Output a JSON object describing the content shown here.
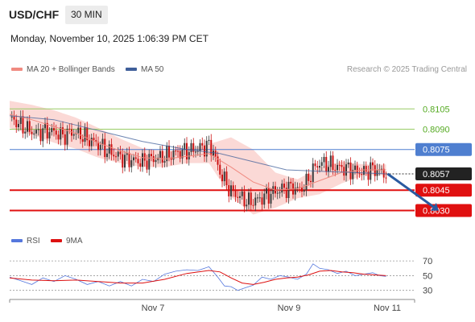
{
  "header": {
    "symbol": "USD/CHF",
    "timeframe": "30 MIN",
    "timestamp": "Monday, November 10, 2025 1:06:39 PM CET"
  },
  "legend": {
    "ma20": "MA 20 + Bollinger Bands",
    "ma50": "MA 50",
    "rsi": "RSI",
    "ma9": "9MA",
    "credit": "Research © 2025 Trading Central"
  },
  "colors": {
    "ma20": "#f08a80",
    "band": "#fbd9d6",
    "ma50": "#3f5f9a",
    "up": "#3a3a3a",
    "down": "#cc1111",
    "support": "#e01010",
    "resistance_green": "#99cc66",
    "pivot_blue": "#4f7fd0",
    "arrow": "#2a5aa0",
    "rsi": "#5577dd",
    "rsi_ma": "#dd1111"
  },
  "chart_data": [
    {
      "type": "line",
      "name": "price",
      "y_scale_range": [
        0.8016,
        0.8123
      ],
      "x_ticks": [
        "Nov 7",
        "Nov 9",
        "Nov 11"
      ],
      "price_path": [
        [
          0,
          0.8099
        ],
        [
          4,
          0.8094
        ],
        [
          8,
          0.809
        ],
        [
          12,
          0.8087
        ],
        [
          16,
          0.8089
        ],
        [
          20,
          0.8088
        ],
        [
          24,
          0.8085
        ],
        [
          28,
          0.8088
        ],
        [
          32,
          0.8086
        ],
        [
          36,
          0.8082
        ],
        [
          40,
          0.8079
        ],
        [
          44,
          0.8074
        ],
        [
          48,
          0.8071
        ],
        [
          52,
          0.8068
        ],
        [
          56,
          0.8067
        ],
        [
          60,
          0.8066
        ],
        [
          64,
          0.8068
        ],
        [
          68,
          0.8069
        ],
        [
          72,
          0.8071
        ],
        [
          76,
          0.8073
        ],
        [
          80,
          0.8074
        ],
        [
          84,
          0.8075
        ],
        [
          88,
          0.8077
        ],
        [
          90,
          0.8078
        ],
        [
          92,
          0.8074
        ],
        [
          94,
          0.8062
        ],
        [
          97,
          0.8052
        ],
        [
          100,
          0.8044
        ],
        [
          104,
          0.804
        ],
        [
          108,
          0.8036
        ],
        [
          112,
          0.8038
        ],
        [
          116,
          0.8041
        ],
        [
          120,
          0.8044
        ],
        [
          124,
          0.8046
        ],
        [
          128,
          0.8047
        ],
        [
          131,
          0.8045
        ],
        [
          134,
          0.805
        ],
        [
          137,
          0.806
        ],
        [
          140,
          0.8065
        ],
        [
          144,
          0.8064
        ],
        [
          148,
          0.8062
        ],
        [
          152,
          0.8061
        ],
        [
          156,
          0.8059
        ],
        [
          160,
          0.8058
        ],
        [
          164,
          0.8061
        ],
        [
          167,
          0.8059
        ],
        [
          170,
          0.8057
        ]
      ],
      "ma20_path": [
        [
          0,
          0.8101
        ],
        [
          10,
          0.8097
        ],
        [
          20,
          0.8092
        ],
        [
          30,
          0.8087
        ],
        [
          40,
          0.808
        ],
        [
          50,
          0.8074
        ],
        [
          60,
          0.8069
        ],
        [
          70,
          0.8068
        ],
        [
          80,
          0.807
        ],
        [
          90,
          0.8072
        ],
        [
          100,
          0.8062
        ],
        [
          110,
          0.8051
        ],
        [
          120,
          0.8045
        ],
        [
          130,
          0.8046
        ],
        [
          140,
          0.8052
        ],
        [
          150,
          0.8058
        ],
        [
          160,
          0.806
        ],
        [
          170,
          0.806
        ]
      ],
      "band_width_path": [
        [
          0,
          0.001
        ],
        [
          20,
          0.0012
        ],
        [
          40,
          0.0011
        ],
        [
          60,
          0.0007
        ],
        [
          80,
          0.0005
        ],
        [
          90,
          0.0007
        ],
        [
          100,
          0.0022
        ],
        [
          110,
          0.0024
        ],
        [
          120,
          0.0013
        ],
        [
          130,
          0.0007
        ],
        [
          140,
          0.001
        ],
        [
          150,
          0.0008
        ],
        [
          160,
          0.0004
        ],
        [
          170,
          0.0004
        ]
      ],
      "ma50_path": [
        [
          0,
          0.81
        ],
        [
          20,
          0.8097
        ],
        [
          40,
          0.8089
        ],
        [
          60,
          0.8081
        ],
        [
          80,
          0.8075
        ],
        [
          95,
          0.8072
        ],
        [
          110,
          0.8066
        ],
        [
          125,
          0.806
        ],
        [
          140,
          0.8059
        ],
        [
          155,
          0.8058
        ],
        [
          170,
          0.8057
        ]
      ],
      "levels": [
        {
          "label": "0.8105",
          "value": 0.8105,
          "style": "green"
        },
        {
          "label": "0.8090",
          "value": 0.809,
          "style": "green"
        },
        {
          "label": "0.8075",
          "value": 0.8075,
          "style": "blue"
        },
        {
          "label": "0.8057",
          "value": 0.8057,
          "style": "current"
        },
        {
          "label": "0.8045",
          "value": 0.8045,
          "style": "red"
        },
        {
          "label": "0.8030",
          "value": 0.803,
          "style": "red"
        }
      ],
      "projection": {
        "from": [
          170,
          0.8057
        ],
        "to": [
          192,
          0.8032
        ]
      }
    },
    {
      "type": "line",
      "name": "RSI",
      "y_ticks": [
        30,
        50,
        70
      ],
      "ylim": [
        22,
        80
      ],
      "rsi_path": [
        [
          0,
          48
        ],
        [
          5,
          43
        ],
        [
          10,
          38
        ],
        [
          15,
          47
        ],
        [
          20,
          42
        ],
        [
          25,
          50
        ],
        [
          30,
          45
        ],
        [
          35,
          38
        ],
        [
          40,
          42
        ],
        [
          45,
          36
        ],
        [
          50,
          42
        ],
        [
          55,
          36
        ],
        [
          60,
          45
        ],
        [
          65,
          42
        ],
        [
          70,
          52
        ],
        [
          75,
          56
        ],
        [
          80,
          58
        ],
        [
          85,
          57
        ],
        [
          90,
          62
        ],
        [
          94,
          48
        ],
        [
          97,
          36
        ],
        [
          100,
          35
        ],
        [
          103,
          30
        ],
        [
          106,
          33
        ],
        [
          110,
          37
        ],
        [
          114,
          48
        ],
        [
          118,
          45
        ],
        [
          122,
          50
        ],
        [
          126,
          48
        ],
        [
          130,
          45
        ],
        [
          134,
          52
        ],
        [
          137,
          66
        ],
        [
          140,
          60
        ],
        [
          144,
          58
        ],
        [
          148,
          53
        ],
        [
          152,
          56
        ],
        [
          156,
          50
        ],
        [
          160,
          52
        ],
        [
          164,
          54
        ],
        [
          167,
          50
        ],
        [
          170,
          49
        ]
      ],
      "ma_path": [
        [
          0,
          47
        ],
        [
          10,
          44
        ],
        [
          20,
          43
        ],
        [
          30,
          44
        ],
        [
          40,
          42
        ],
        [
          50,
          40
        ],
        [
          60,
          40
        ],
        [
          70,
          45
        ],
        [
          80,
          53
        ],
        [
          90,
          57
        ],
        [
          95,
          55
        ],
        [
          100,
          47
        ],
        [
          105,
          40
        ],
        [
          110,
          38
        ],
        [
          115,
          41
        ],
        [
          120,
          45
        ],
        [
          125,
          47
        ],
        [
          130,
          48
        ],
        [
          135,
          51
        ],
        [
          140,
          56
        ],
        [
          145,
          57
        ],
        [
          150,
          55
        ],
        [
          155,
          54
        ],
        [
          160,
          52
        ],
        [
          165,
          51
        ],
        [
          170,
          50
        ]
      ]
    }
  ]
}
